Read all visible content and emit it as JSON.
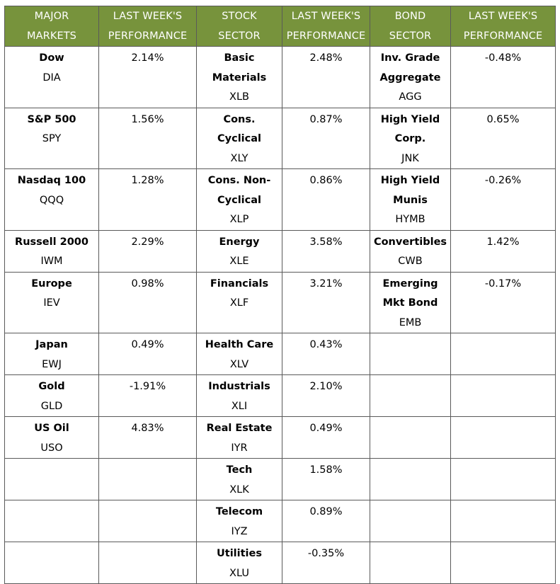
{
  "headers": {
    "major_markets": [
      "MAJOR",
      "MARKETS"
    ],
    "major_perf": [
      "LAST WEEK'S",
      "PERFORMANCE"
    ],
    "stock_sector": [
      "STOCK",
      "SECTOR"
    ],
    "stock_perf": [
      "LAST WEEK'S",
      "PERFORMANCE"
    ],
    "bond_sector": [
      "BOND",
      "SECTOR"
    ],
    "bond_perf": [
      "LAST WEEK'S",
      "PERFORMANCE"
    ]
  },
  "rows": [
    {
      "market": {
        "name": "Dow",
        "ticker": "DIA",
        "perf": "2.14%"
      },
      "stock": {
        "name_lines": [
          "Basic",
          "Materials"
        ],
        "ticker": "XLB",
        "perf": "2.48%"
      },
      "bond": {
        "name_lines": [
          "Inv. Grade",
          "Aggregate"
        ],
        "ticker": "AGG",
        "perf": "-0.48%"
      }
    },
    {
      "market": {
        "name": "S&P 500",
        "ticker": "SPY",
        "perf": "1.56%"
      },
      "stock": {
        "name_lines": [
          "Cons.",
          "Cyclical"
        ],
        "ticker": "XLY",
        "perf": "0.87%"
      },
      "bond": {
        "name_lines": [
          "High Yield",
          "Corp."
        ],
        "ticker": "JNK",
        "perf": "0.65%"
      }
    },
    {
      "market": {
        "name": "Nasdaq 100",
        "ticker": "QQQ",
        "perf": "1.28%"
      },
      "stock": {
        "name_lines": [
          "Cons. Non-",
          "Cyclical"
        ],
        "ticker": "XLP",
        "perf": "0.86%"
      },
      "bond": {
        "name_lines": [
          "High Yield",
          "Munis"
        ],
        "ticker": "HYMB",
        "perf": "-0.26%"
      }
    },
    {
      "market": {
        "name": "Russell 2000",
        "ticker": "IWM",
        "perf": "2.29%"
      },
      "stock": {
        "name_lines": [
          "Energy"
        ],
        "ticker": "XLE",
        "perf": "3.58%"
      },
      "bond": {
        "name_lines": [
          "Convertibles"
        ],
        "ticker": "CWB",
        "perf": "1.42%"
      }
    },
    {
      "market": {
        "name": "Europe",
        "ticker": "IEV",
        "perf": "0.98%"
      },
      "stock": {
        "name_lines": [
          "Financials"
        ],
        "ticker": "XLF",
        "perf": "3.21%"
      },
      "bond": {
        "name_lines": [
          "Emerging",
          "Mkt Bond"
        ],
        "ticker": "EMB",
        "perf": "-0.17%"
      }
    },
    {
      "market": {
        "name": "Japan",
        "ticker": "EWJ",
        "perf": "0.49%"
      },
      "stock": {
        "name_lines": [
          "Health Care"
        ],
        "ticker": "XLV",
        "perf": "0.43%"
      }
    },
    {
      "market": {
        "name": "Gold",
        "ticker": "GLD",
        "perf": "-1.91%"
      },
      "stock": {
        "name_lines": [
          "Industrials"
        ],
        "ticker": "XLI",
        "perf": "2.10%"
      }
    },
    {
      "market": {
        "name": "US Oil",
        "ticker": "USO",
        "perf": "4.83%"
      },
      "stock": {
        "name_lines": [
          "Real Estate"
        ],
        "ticker": "IYR",
        "perf": "0.49%"
      }
    },
    {
      "stock": {
        "name_lines": [
          "Tech"
        ],
        "ticker": "XLK",
        "perf": "1.58%"
      }
    },
    {
      "stock": {
        "name_lines": [
          "Telecom"
        ],
        "ticker": "IYZ",
        "perf": "0.89%"
      }
    },
    {
      "stock": {
        "name_lines": [
          "Utilities"
        ],
        "ticker": "XLU",
        "perf": "-0.35%"
      }
    }
  ],
  "colors": {
    "header_background": "#77933c",
    "header_text": "#ffffff",
    "border": "#5a5a5a"
  }
}
